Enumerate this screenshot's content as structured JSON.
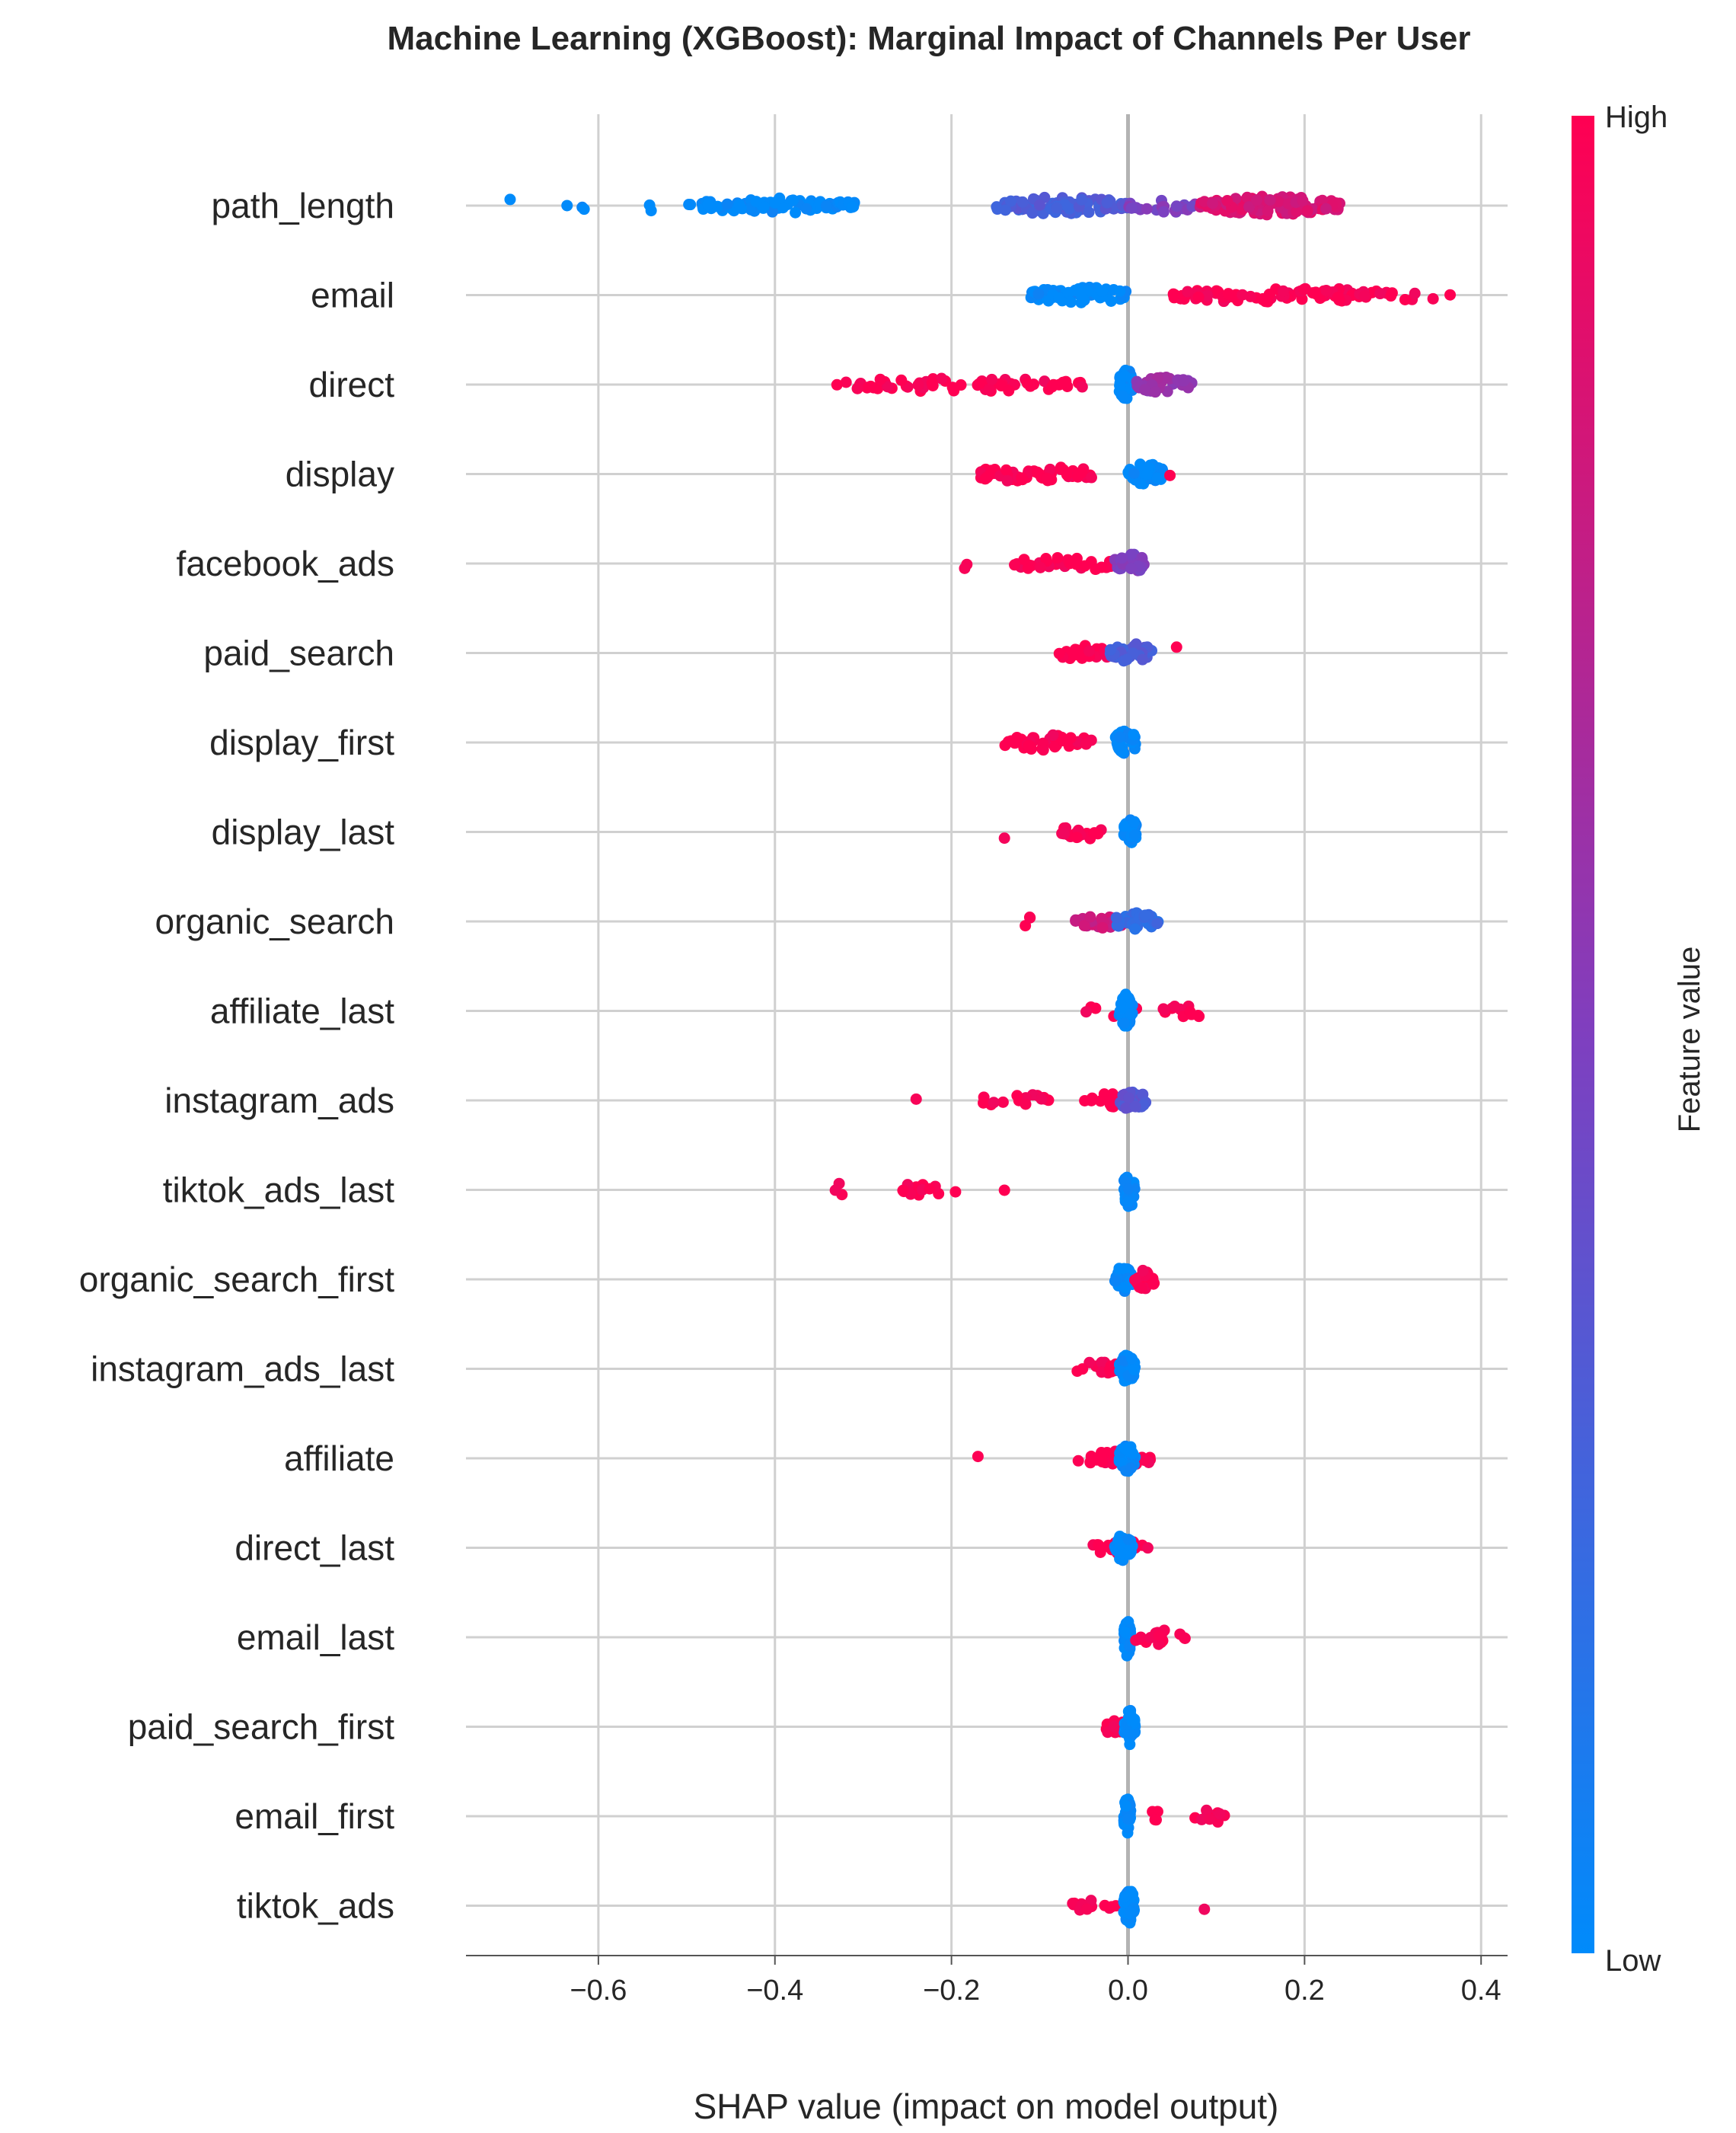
{
  "chart_data": {
    "type": "scatter",
    "subtype": "shap-beeswarm",
    "title": "Machine Learning (XGBoost): Marginal Impact of Channels Per User",
    "xlabel": "SHAP value (impact on model output)",
    "xlim": [
      -0.75,
      0.43
    ],
    "xticks": [
      -0.6,
      -0.4,
      -0.2,
      0.0,
      0.2,
      0.4
    ],
    "xtick_labels": [
      "−0.6",
      "−0.4",
      "−0.2",
      "0.0",
      "0.2",
      "0.4"
    ],
    "colorbar": {
      "label": "Feature value",
      "high_label": "High",
      "low_label": "Low",
      "high_color": "#ff0052",
      "mid_color": "#7f3fbf",
      "low_color": "#008bfb"
    },
    "features": [
      {
        "name": "path_length",
        "clusters": [
          {
            "lo": -0.7,
            "hi": -0.7,
            "v": 0.0,
            "n": 1
          },
          {
            "lo": -0.64,
            "hi": -0.6,
            "v": 0.0,
            "n": 3
          },
          {
            "lo": -0.57,
            "hi": -0.53,
            "v": 0.0,
            "n": 2
          },
          {
            "lo": -0.5,
            "hi": -0.31,
            "v": 0.0,
            "n": 70
          },
          {
            "lo": -0.15,
            "hi": 0.0,
            "v": 0.3,
            "n": 90
          },
          {
            "lo": 0.0,
            "hi": 0.08,
            "v": 0.5,
            "n": 22
          },
          {
            "lo": 0.08,
            "hi": 0.24,
            "v": 0.85,
            "n": 130
          }
        ]
      },
      {
        "name": "email",
        "clusters": [
          {
            "lo": -0.11,
            "hi": 0.0,
            "v": 0.0,
            "n": 60
          },
          {
            "lo": 0.05,
            "hi": 0.3,
            "v": 1.0,
            "n": 90
          },
          {
            "lo": 0.3,
            "hi": 0.37,
            "v": 1.0,
            "n": 5
          }
        ]
      },
      {
        "name": "direct",
        "clusters": [
          {
            "lo": -0.33,
            "hi": -0.05,
            "v": 1.0,
            "n": 65
          },
          {
            "lo": -0.01,
            "hi": 0.005,
            "v": 0.0,
            "n": 40
          },
          {
            "lo": 0.01,
            "hi": 0.075,
            "v": 0.6,
            "n": 40
          }
        ]
      },
      {
        "name": "display",
        "clusters": [
          {
            "lo": -0.18,
            "hi": -0.03,
            "v": 1.0,
            "n": 55
          },
          {
            "lo": 0.0,
            "hi": 0.04,
            "v": 0.0,
            "n": 45
          },
          {
            "lo": 0.045,
            "hi": 0.05,
            "v": 1.0,
            "n": 1
          }
        ]
      },
      {
        "name": "facebook_ads",
        "clusters": [
          {
            "lo": -0.19,
            "hi": -0.18,
            "v": 1.0,
            "n": 2
          },
          {
            "lo": -0.13,
            "hi": -0.01,
            "v": 1.0,
            "n": 35
          },
          {
            "lo": -0.015,
            "hi": 0.02,
            "v": 0.5,
            "n": 30
          }
        ]
      },
      {
        "name": "paid_search",
        "clusters": [
          {
            "lo": -0.08,
            "hi": -0.02,
            "v": 1.0,
            "n": 20
          },
          {
            "lo": -0.02,
            "hi": 0.03,
            "v": 0.3,
            "n": 40
          },
          {
            "lo": 0.05,
            "hi": 0.06,
            "v": 1.0,
            "n": 1
          }
        ]
      },
      {
        "name": "display_first",
        "clusters": [
          {
            "lo": -0.14,
            "hi": -0.04,
            "v": 1.0,
            "n": 40
          },
          {
            "lo": -0.015,
            "hi": 0.01,
            "v": 0.0,
            "n": 35
          }
        ]
      },
      {
        "name": "display_last",
        "clusters": [
          {
            "lo": -0.14,
            "hi": -0.14,
            "v": 1.0,
            "n": 1
          },
          {
            "lo": -0.075,
            "hi": -0.03,
            "v": 1.0,
            "n": 20
          },
          {
            "lo": -0.005,
            "hi": 0.01,
            "v": 0.0,
            "n": 30
          }
        ]
      },
      {
        "name": "organic_search",
        "clusters": [
          {
            "lo": -0.12,
            "hi": -0.11,
            "v": 1.0,
            "n": 3
          },
          {
            "lo": -0.06,
            "hi": 0.03,
            "v": 0.8,
            "n": 30
          },
          {
            "lo": -0.015,
            "hi": 0.035,
            "v": 0.2,
            "n": 35
          }
        ]
      },
      {
        "name": "affiliate_last",
        "clusters": [
          {
            "lo": -0.05,
            "hi": 0.01,
            "v": 1.0,
            "n": 6
          },
          {
            "lo": -0.01,
            "hi": 0.005,
            "v": 0.0,
            "n": 40
          },
          {
            "lo": 0.04,
            "hi": 0.1,
            "v": 1.0,
            "n": 12
          }
        ]
      },
      {
        "name": "instagram_ads",
        "clusters": [
          {
            "lo": -0.24,
            "hi": -0.24,
            "v": 1.0,
            "n": 1
          },
          {
            "lo": -0.17,
            "hi": -0.09,
            "v": 1.0,
            "n": 15
          },
          {
            "lo": -0.05,
            "hi": -0.005,
            "v": 1.0,
            "n": 15
          },
          {
            "lo": -0.01,
            "hi": 0.02,
            "v": 0.35,
            "n": 30
          }
        ]
      },
      {
        "name": "tiktok_ads_last",
        "clusters": [
          {
            "lo": -0.335,
            "hi": -0.32,
            "v": 1.0,
            "n": 3
          },
          {
            "lo": -0.28,
            "hi": -0.19,
            "v": 1.0,
            "n": 14
          },
          {
            "lo": -0.14,
            "hi": -0.14,
            "v": 1.0,
            "n": 1
          },
          {
            "lo": -0.005,
            "hi": 0.008,
            "v": 0.0,
            "n": 40
          }
        ]
      },
      {
        "name": "organic_search_first",
        "clusters": [
          {
            "lo": -0.015,
            "hi": 0.005,
            "v": 0.0,
            "n": 35
          },
          {
            "lo": 0.005,
            "hi": 0.03,
            "v": 1.0,
            "n": 25
          }
        ]
      },
      {
        "name": "instagram_ads_last",
        "clusters": [
          {
            "lo": -0.06,
            "hi": -0.005,
            "v": 1.0,
            "n": 18
          },
          {
            "lo": -0.01,
            "hi": 0.008,
            "v": 0.0,
            "n": 35
          }
        ]
      },
      {
        "name": "affiliate",
        "clusters": [
          {
            "lo": -0.17,
            "hi": -0.17,
            "v": 1.0,
            "n": 1
          },
          {
            "lo": -0.06,
            "hi": 0.03,
            "v": 1.0,
            "n": 30
          },
          {
            "lo": -0.01,
            "hi": 0.008,
            "v": 0.0,
            "n": 35
          }
        ]
      },
      {
        "name": "direct_last",
        "clusters": [
          {
            "lo": -0.04,
            "hi": 0.035,
            "v": 1.0,
            "n": 18
          },
          {
            "lo": -0.015,
            "hi": 0.005,
            "v": 0.0,
            "n": 35
          }
        ]
      },
      {
        "name": "email_last",
        "clusters": [
          {
            "lo": -0.005,
            "hi": 0.003,
            "v": 0.0,
            "n": 40
          },
          {
            "lo": 0.005,
            "hi": 0.065,
            "v": 1.0,
            "n": 20
          }
        ]
      },
      {
        "name": "paid_search_first",
        "clusters": [
          {
            "lo": -0.025,
            "hi": -0.005,
            "v": 1.0,
            "n": 15
          },
          {
            "lo": -0.005,
            "hi": 0.008,
            "v": 0.0,
            "n": 40
          }
        ]
      },
      {
        "name": "email_first",
        "clusters": [
          {
            "lo": -0.005,
            "hi": 0.003,
            "v": 0.0,
            "n": 40
          },
          {
            "lo": 0.025,
            "hi": 0.035,
            "v": 1.0,
            "n": 4
          },
          {
            "lo": 0.075,
            "hi": 0.11,
            "v": 1.0,
            "n": 10
          }
        ]
      },
      {
        "name": "tiktok_ads",
        "clusters": [
          {
            "lo": -0.065,
            "hi": -0.005,
            "v": 1.0,
            "n": 15
          },
          {
            "lo": -0.005,
            "hi": 0.008,
            "v": 0.0,
            "n": 40
          },
          {
            "lo": 0.085,
            "hi": 0.088,
            "v": 1.0,
            "n": 1
          }
        ]
      }
    ]
  }
}
